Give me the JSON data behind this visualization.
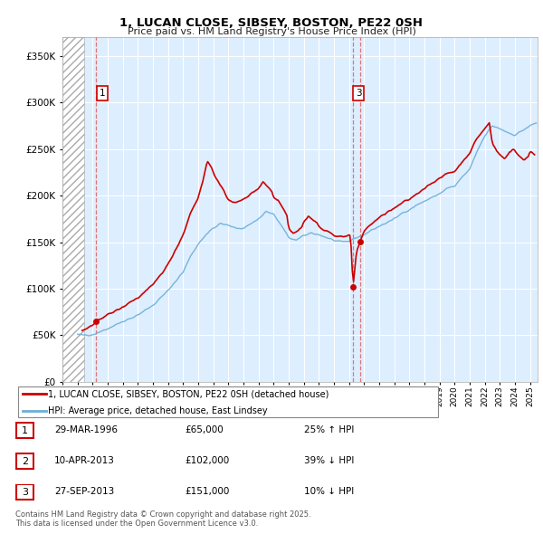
{
  "title": "1, LUCAN CLOSE, SIBSEY, BOSTON, PE22 0SH",
  "subtitle": "Price paid vs. HM Land Registry's House Price Index (HPI)",
  "legend_line1": "1, LUCAN CLOSE, SIBSEY, BOSTON, PE22 0SH (detached house)",
  "legend_line2": "HPI: Average price, detached house, East Lindsey",
  "footer": "Contains HM Land Registry data © Crown copyright and database right 2025.\nThis data is licensed under the Open Government Licence v3.0.",
  "transactions": [
    {
      "num": 1,
      "date": "29-MAR-1996",
      "price": "£65,000",
      "hpi_rel": "25% ↑ HPI",
      "x_year": 1996.24,
      "y_price": 65000
    },
    {
      "num": 2,
      "date": "10-APR-2013",
      "price": "£102,000",
      "hpi_rel": "39% ↓ HPI",
      "x_year": 2013.27,
      "y_price": 102000
    },
    {
      "num": 3,
      "date": "27-SEP-2013",
      "price": "£151,000",
      "hpi_rel": "10% ↓ HPI",
      "x_year": 2013.74,
      "y_price": 151000
    }
  ],
  "hpi_color": "#6baed6",
  "price_color": "#cc0000",
  "vline_color": "#e06060",
  "chart_bg": "#ddeeff",
  "ylim": [
    0,
    370000
  ],
  "xlim_start": 1994.0,
  "xlim_end": 2025.5,
  "hatch_end": 1995.42
}
